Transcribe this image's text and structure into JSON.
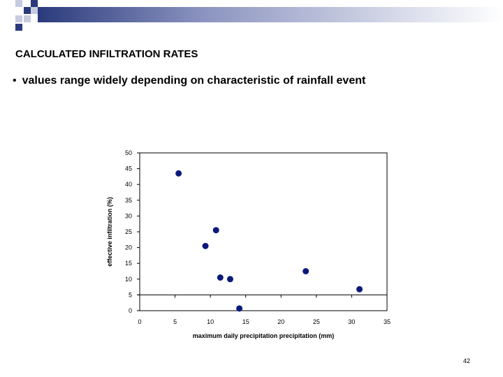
{
  "slide": {
    "title": "CALCULATED INFILTRATION RATES",
    "bullet_marker": "•",
    "bullet": "values range widely depending on characteristic of rainfall event",
    "page_number": "42"
  },
  "colors": {
    "accent_dark": "#2a3a7c",
    "square_light": "#c7cbe0",
    "marker": "#0b1a7a"
  },
  "chart_data": {
    "type": "scatter",
    "title": "",
    "xlabel": "maximum daily precipitation precipitation  (mm)",
    "ylabel": "effective infiltration (%)",
    "xlim": [
      0,
      35
    ],
    "ylim": [
      0,
      50
    ],
    "xticks": [
      0,
      5,
      10,
      15,
      20,
      25,
      30,
      35
    ],
    "yticks": [
      0,
      5,
      10,
      15,
      20,
      25,
      30,
      35,
      40,
      45,
      50
    ],
    "grid": false,
    "legend": "none",
    "points": [
      {
        "x": 5.5,
        "y": 43.5
      },
      {
        "x": 9.3,
        "y": 20.5
      },
      {
        "x": 10.8,
        "y": 25.5
      },
      {
        "x": 11.4,
        "y": 10.5
      },
      {
        "x": 12.8,
        "y": 10.0
      },
      {
        "x": 14.1,
        "y": 0.7
      },
      {
        "x": 23.5,
        "y": 12.5
      },
      {
        "x": 31.1,
        "y": 6.8
      }
    ]
  }
}
